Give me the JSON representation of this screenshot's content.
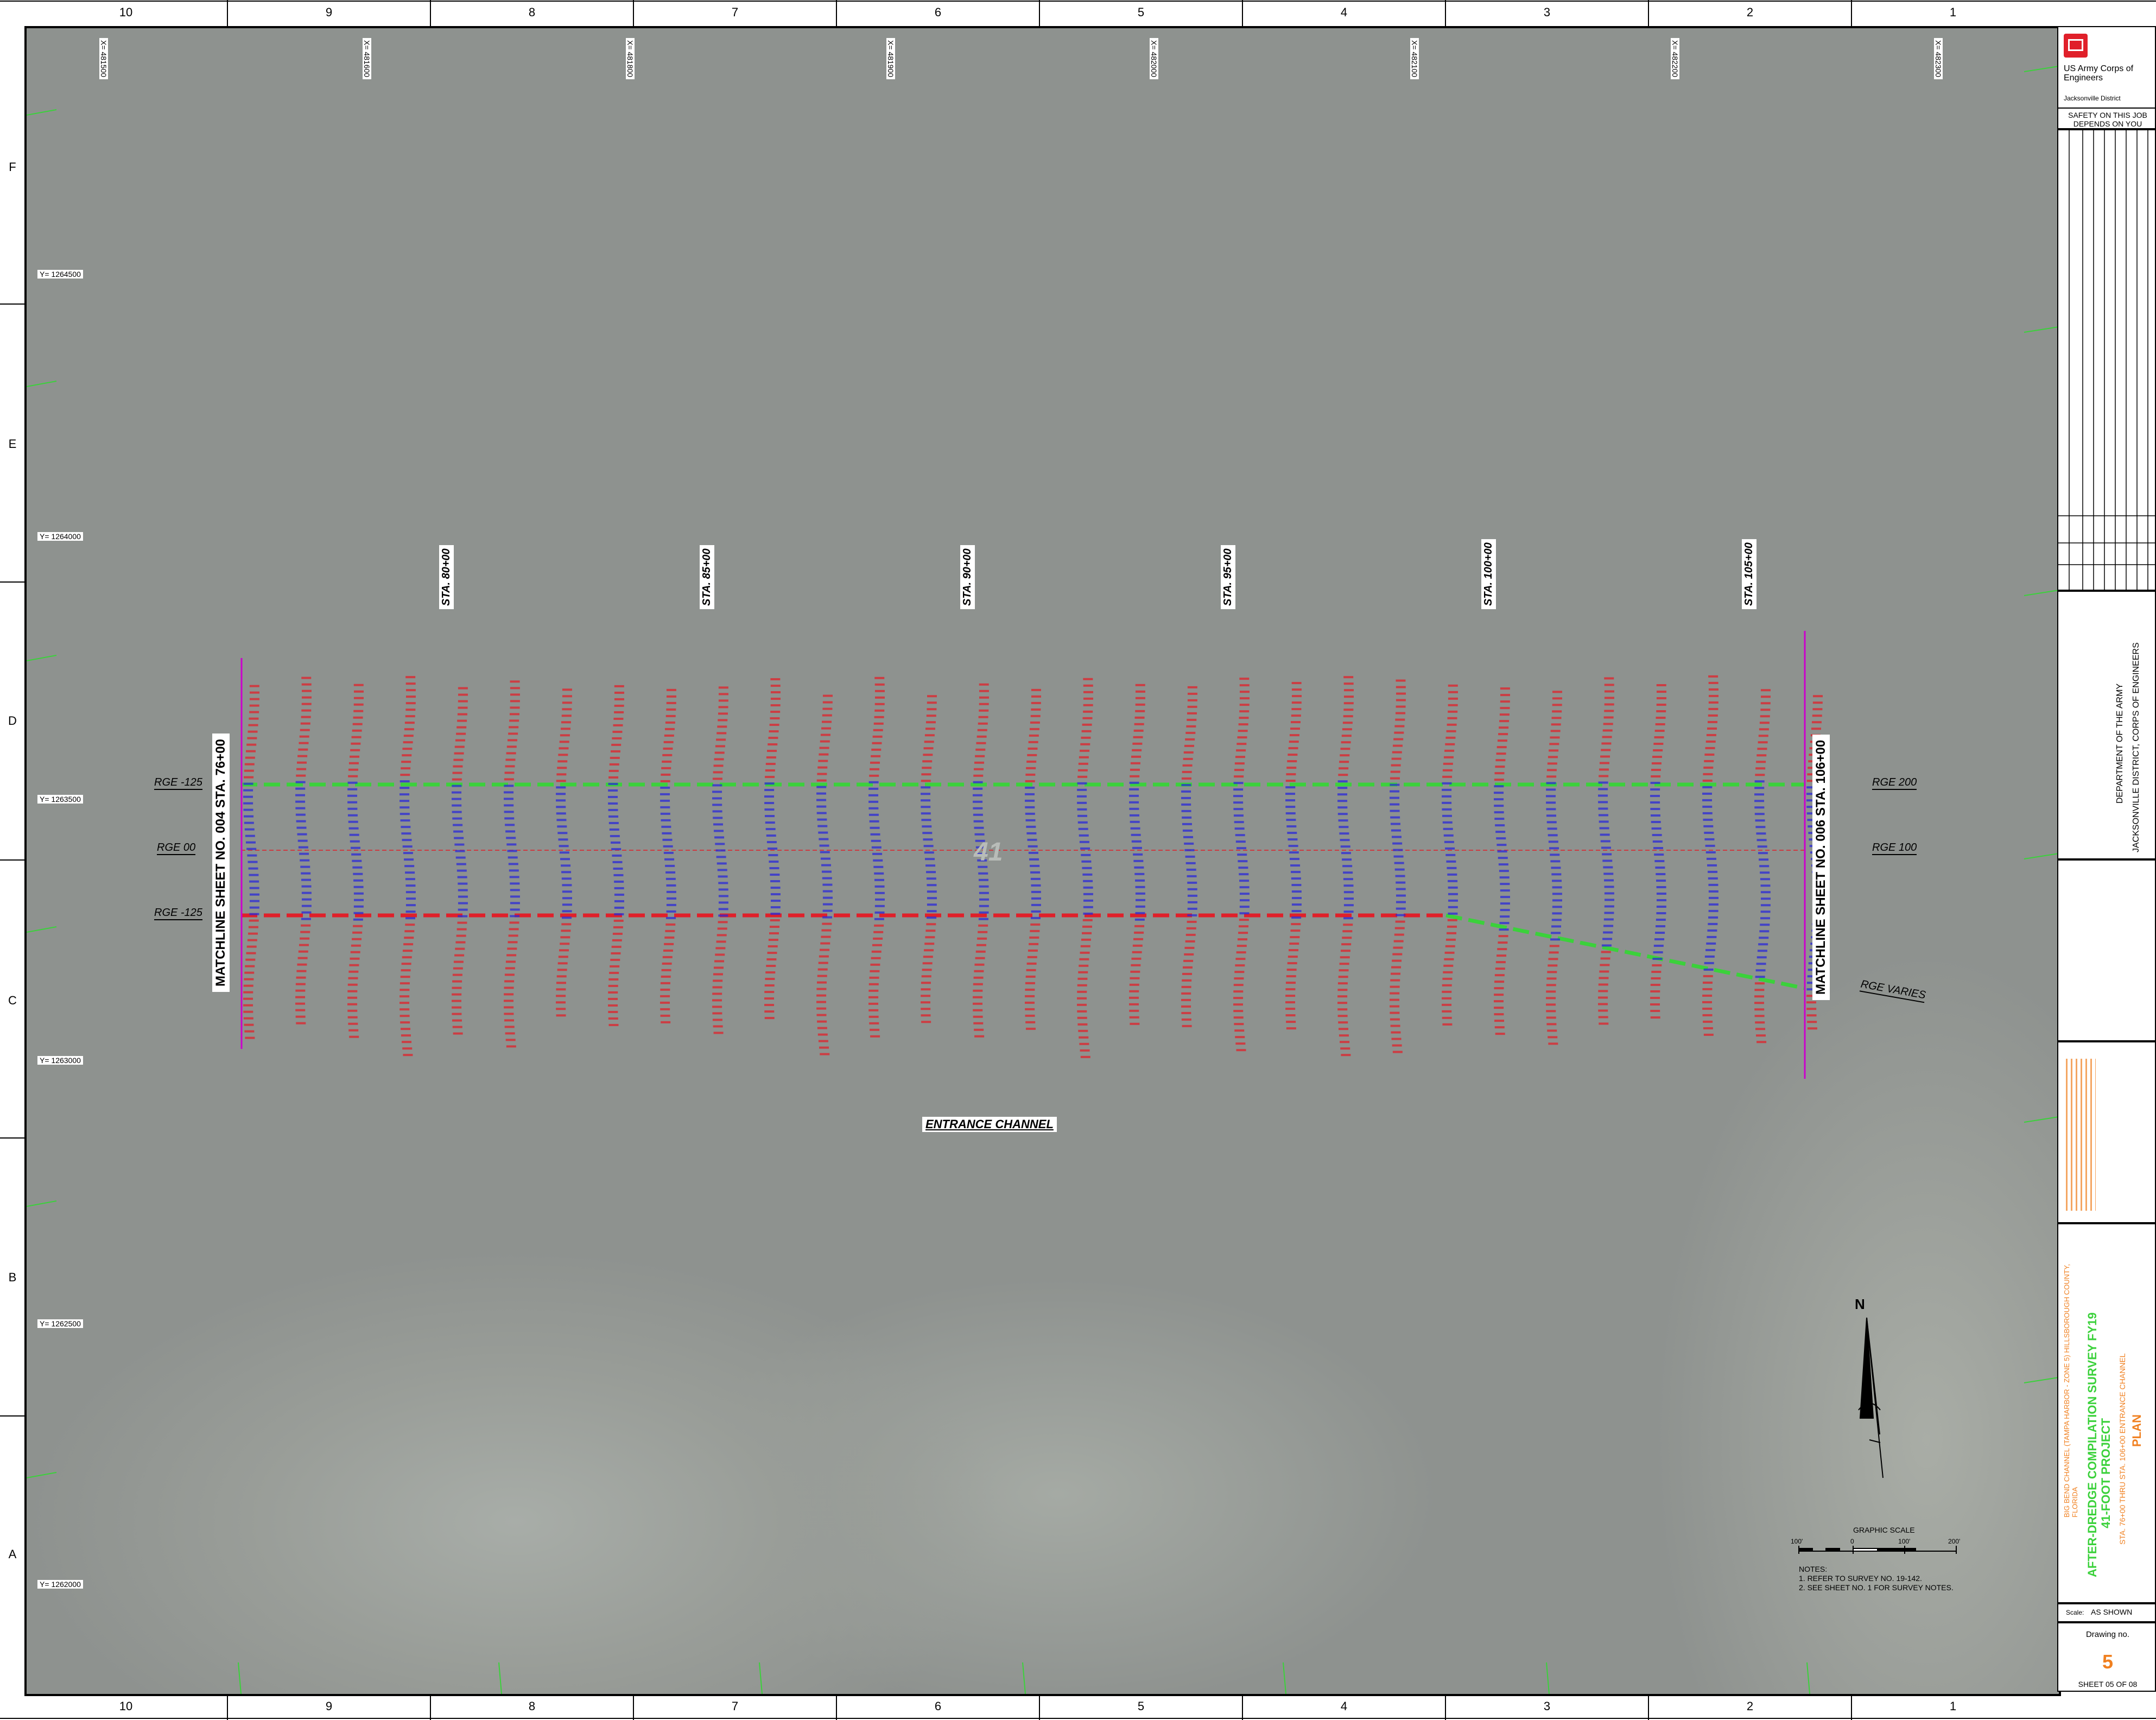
{
  "grid": {
    "columns": [
      "10",
      "9",
      "8",
      "7",
      "6",
      "5",
      "4",
      "3",
      "2",
      "1"
    ],
    "rows": [
      "F",
      "E",
      "D",
      "C",
      "B",
      "A"
    ]
  },
  "easting_labels": [
    "X= 481500",
    "X= 481600",
    "X= 481800",
    "X= 481900",
    "X= 482000",
    "X= 482100",
    "X= 482200",
    "X= 482300"
  ],
  "northing_labels": [
    "Y= 1264500",
    "Y= 1264000",
    "Y= 1263500",
    "Y= 1263000",
    "Y= 1262500",
    "Y= 1262000"
  ],
  "stations": [
    "STA. 80+00",
    "STA. 85+00",
    "STA. 90+00",
    "STA. 95+00",
    "STA. 100+00",
    "STA. 105+00"
  ],
  "ranges_left": [
    "RGE -125",
    "RGE 00",
    "RGE -125"
  ],
  "ranges_right": [
    "RGE 200",
    "RGE 100",
    "RGE VARIES"
  ],
  "matchline_left": "MATCHLINE SHEET NO. 004 STA. 76+00",
  "matchline_right": "MATCHLINE SHEET NO. 006 STA. 106+00",
  "channel_label": "ENTRANCE CHANNEL",
  "depth_marker": "41",
  "north_arrow_label": "N",
  "graphic_scale": {
    "title": "GRAPHIC SCALE",
    "ticks": [
      "100'",
      "0",
      "100'",
      "200'"
    ]
  },
  "notes": {
    "header": "NOTES:",
    "items": [
      "1. REFER TO SURVEY NO. 19-142.",
      "2. SEE SHEET NO. 1 FOR SURVEY NOTES."
    ]
  },
  "title_block": {
    "agency": "US Army Corps of Engineers",
    "district": "Jacksonville District",
    "safety": "SAFETY ON THIS JOB DEPENDS ON YOU",
    "department": "DEPARTMENT OF THE ARMY",
    "office": "JACKSONVILLE DISTRICT, CORPS OF ENGINEERS",
    "project_location": "BIG BEND CHANNEL (TAMPA HARBOR - ZONE 5) HILLSBOROUGH COUNTY, FLORIDA",
    "survey_title": "AFTER-DREDGE COMPILATION SURVEY FY19",
    "project": "41-FOOT PROJECT",
    "reach": "STA. 76+00 THRU STA. 106+00 ENTRANCE CHANNEL",
    "view": "PLAN",
    "scale_label": "Scale:",
    "scale_value": "AS SHOWN",
    "drawing_label": "Drawing no.",
    "drawing_number": "5",
    "sheet": "SHEET 05 OF 08"
  },
  "colors": {
    "red_line": "#e0202a",
    "green_line": "#3bd13b",
    "magenta": "#cc00cc",
    "sounding_red": "#e0202a",
    "sounding_blue": "#2a28d8",
    "orange": "#f08020"
  }
}
